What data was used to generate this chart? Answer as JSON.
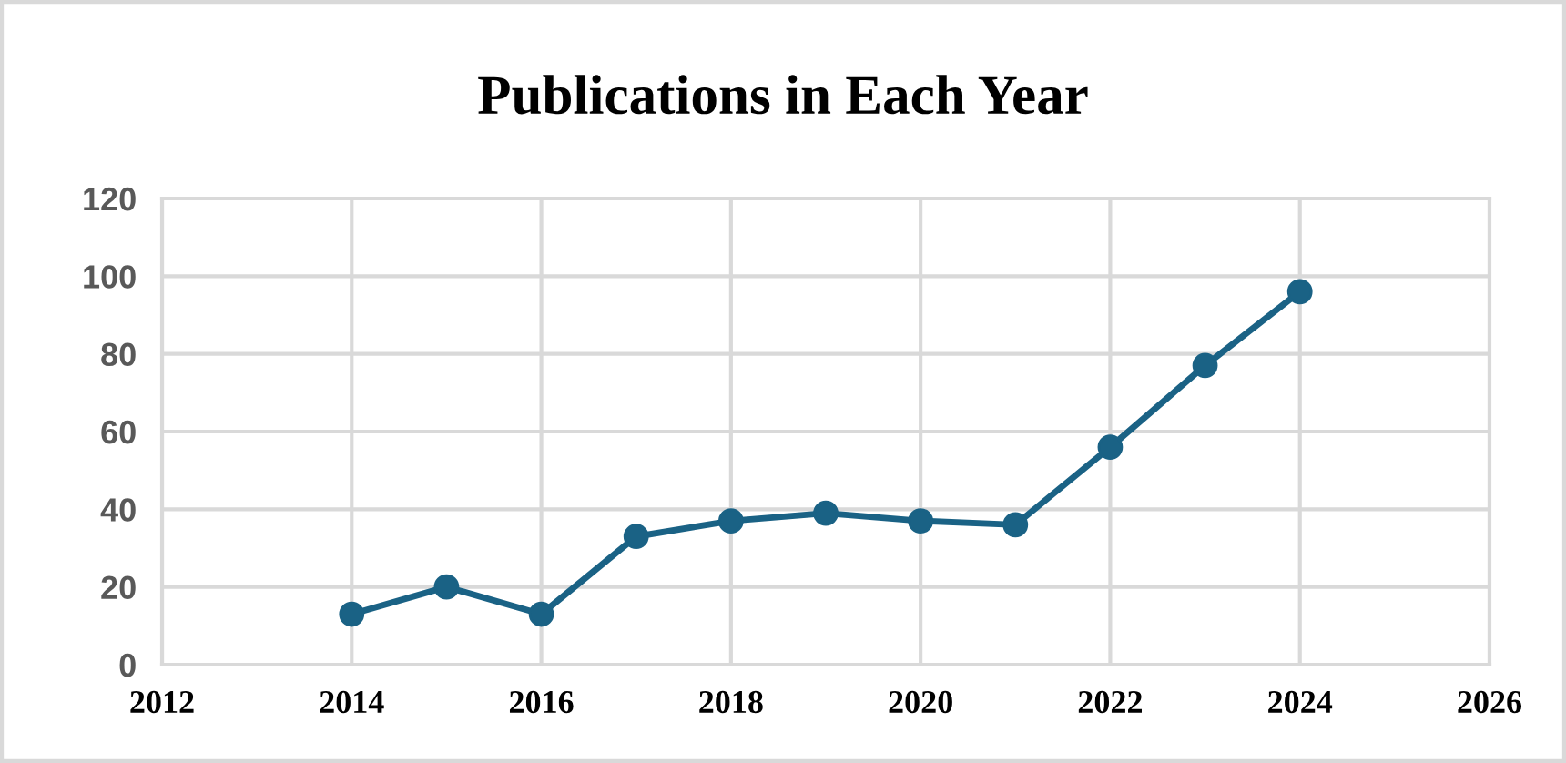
{
  "chart_data": {
    "type": "line",
    "title": "Publications in Each Year",
    "x": [
      2014,
      2015,
      2016,
      2017,
      2018,
      2019,
      2020,
      2021,
      2022,
      2023,
      2024
    ],
    "series": [
      {
        "color": "#1a6285",
        "values": [
          13,
          20,
          13,
          33,
          37,
          39,
          37,
          36,
          56,
          77,
          96
        ]
      }
    ],
    "xlim": [
      2012,
      2026
    ],
    "xticks": [
      2012,
      2014,
      2016,
      2018,
      2020,
      2022,
      2024,
      2026
    ],
    "ylim": [
      0,
      120
    ],
    "yticks": [
      0,
      20,
      40,
      60,
      80,
      100,
      120
    ],
    "grid": true,
    "marker": "circle",
    "line_style": "solid"
  }
}
